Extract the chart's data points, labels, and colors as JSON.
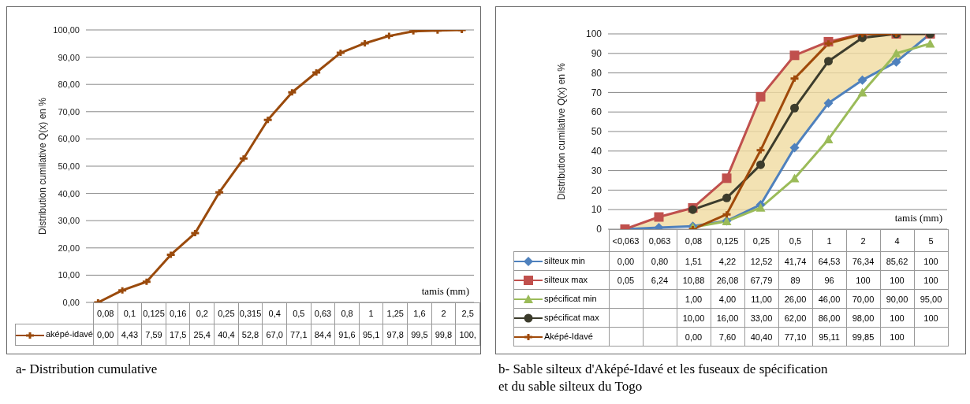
{
  "chart_data": [
    {
      "type": "line",
      "xlabel": "tamis (mm)",
      "ylabel": "Distribution cumilative  Q(x) en %",
      "categories": [
        "0,08",
        "0,1",
        "0,125",
        "0,16",
        "0,2",
        "0,25",
        "0,315",
        "0,4",
        "0,5",
        "0,63",
        "0,8",
        "1",
        "1,25",
        "1,6",
        "2",
        "2,5"
      ],
      "ylim": [
        0,
        100
      ],
      "yticks": [
        {
          "value": 0,
          "label": "0,00"
        },
        {
          "value": 10,
          "label": "10,00"
        },
        {
          "value": 20,
          "label": "20,00"
        },
        {
          "value": 30,
          "label": "30,00"
        },
        {
          "value": 40,
          "label": "40,00"
        },
        {
          "value": 50,
          "label": "50,00"
        },
        {
          "value": 60,
          "label": "60,00"
        },
        {
          "value": 70,
          "label": "70,00"
        },
        {
          "value": 80,
          "label": "80,00"
        },
        {
          "value": 90,
          "label": "90,00"
        },
        {
          "value": 100,
          "label": "100,00"
        }
      ],
      "grid": "y",
      "legend": "bottom",
      "marker": "cross",
      "annotations": [
        "a- Distribution cumulative"
      ],
      "series": [
        {
          "name": "aképé-idavé",
          "color": "#9a4a0c",
          "values": [
            0,
            4.43,
            7.59,
            17.5,
            25.4,
            40.4,
            52.8,
            67.0,
            77.1,
            84.4,
            91.6,
            95.1,
            97.8,
            99.5,
            99.8,
            100
          ],
          "value_labels": [
            "0,00",
            "4,43",
            "7,59",
            "17,5",
            "25,4",
            "40,4",
            "52,8",
            "67,0",
            "77,1",
            "84,4",
            "91,6",
            "95,1",
            "97,8",
            "99,5",
            "99,8",
            "100,"
          ]
        }
      ]
    },
    {
      "type": "line",
      "xlabel": "tamis (mm)",
      "ylabel": "Distribution cumilative  Q(x) en %",
      "categories": [
        "<0,063",
        "0,063",
        "0,08",
        "0,125",
        "0,25",
        "0,5",
        "1",
        "2",
        "4",
        "5"
      ],
      "ylim": [
        0,
        100
      ],
      "yticks": [
        0,
        10,
        20,
        30,
        40,
        50,
        60,
        70,
        80,
        90,
        100
      ],
      "grid": "y",
      "legend": "bottom",
      "annotations": [
        "b- Sable silteux d'Aképé-Idavé et les fuseaux de spécification et du sable silteux du Togo"
      ],
      "series": [
        {
          "name": "silteux min",
          "color": "#4f81bd",
          "marker": "diamond",
          "values": [
            0,
            0.8,
            1.51,
            4.22,
            12.52,
            41.74,
            64.53,
            76.34,
            85.62,
            100
          ],
          "value_labels": [
            "0,00",
            "0,80",
            "1,51",
            "4,22",
            "12,52",
            "41,74",
            "64,53",
            "76,34",
            "85,62",
            "100"
          ]
        },
        {
          "name": "silteux max",
          "color": "#c0504d",
          "marker": "square",
          "values": [
            0.05,
            6.24,
            10.88,
            26.08,
            67.79,
            89,
            96,
            100,
            100,
            100
          ],
          "value_labels": [
            "0,05",
            "6,24",
            "10,88",
            "26,08",
            "67,79",
            "89",
            "96",
            "100",
            "100",
            "100"
          ],
          "lower": [
            0,
            0.8,
            1.51,
            4.22,
            12.52,
            41.74,
            64.53,
            76.34,
            85.62,
            100
          ],
          "upper": [
            0.05,
            6.24,
            10.88,
            26.08,
            67.79,
            89,
            96,
            100,
            100,
            100
          ]
        },
        {
          "name": "spécificat min",
          "color": "#9bbb59",
          "marker": "triangle",
          "values": [
            null,
            null,
            1,
            4,
            11,
            26,
            46,
            70,
            90,
            95
          ],
          "value_labels": [
            null,
            null,
            "1,00",
            "4,00",
            "11,00",
            "26,00",
            "46,00",
            "70,00",
            "90,00",
            "95,00"
          ]
        },
        {
          "name": "spécificat max",
          "color": "#3c3c2c",
          "marker": "circle",
          "values": [
            null,
            null,
            10,
            16,
            33,
            62,
            86,
            98,
            100,
            100
          ],
          "value_labels": [
            null,
            null,
            "10,00",
            "16,00",
            "33,00",
            "62,00",
            "86,00",
            "98,00",
            "100",
            "100"
          ]
        },
        {
          "name": "Aképé-Idavé",
          "color": "#a04a0a",
          "marker": "cross",
          "values": [
            null,
            null,
            0,
            7.6,
            40.4,
            77.1,
            95.11,
            99.85,
            100,
            null
          ],
          "value_labels": [
            null,
            null,
            "0,00",
            "7,60",
            "40,40",
            "77,10",
            "95,11",
            "99,85",
            "100",
            null
          ]
        }
      ]
    }
  ]
}
